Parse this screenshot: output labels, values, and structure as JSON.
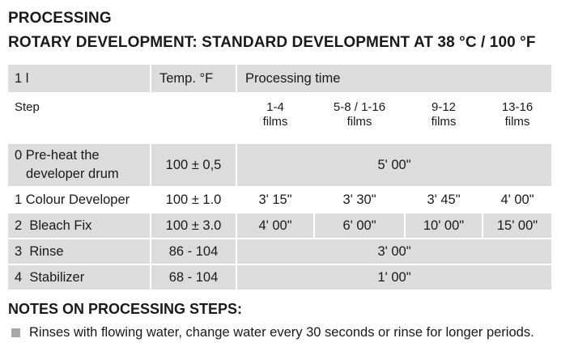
{
  "heading": "PROCESSING",
  "subheading": "ROTARY DEVELOPMENT: STANDARD DEVELOPMENT AT 38 °C / 100 °F",
  "table": {
    "header": {
      "volume": "1 l",
      "temp": "Temp. °F",
      "time": "Processing time"
    },
    "subheader": {
      "step": "Step",
      "cols": [
        {
          "line1": "1-4",
          "line2": "films"
        },
        {
          "line1": "5-8 / 1-16",
          "line2": "films"
        },
        {
          "line1": "9-12",
          "line2": "films"
        },
        {
          "line1": "13-16",
          "line2": "films"
        }
      ]
    },
    "rows": [
      {
        "step_line1": "0 Pre-heat the",
        "step_line2": "developer drum",
        "temp": "100 ± 0,5",
        "time": "5' 00\""
      },
      {
        "step": "1 Colour Developer",
        "temp": "100 ± 1.0",
        "times": [
          "3' 15\"",
          "3' 30\"",
          "3' 45\"",
          "4' 00\""
        ]
      },
      {
        "step": "2  Bleach Fix",
        "temp": "100 ± 3.0",
        "times": [
          "4' 00\"",
          "6' 00\"",
          "10' 00\"",
          "15' 00\""
        ]
      },
      {
        "step": "3  Rinse",
        "temp": "86 - 104",
        "time": "3' 00\""
      },
      {
        "step": "4  Stabilizer",
        "temp": "68 - 104",
        "time": "1' 00\""
      }
    ]
  },
  "notes": {
    "title": "NOTES ON PROCESSING STEPS:",
    "items": [
      "Rinses with flowing water, change water every 30 seconds or rinse for longer periods."
    ]
  }
}
